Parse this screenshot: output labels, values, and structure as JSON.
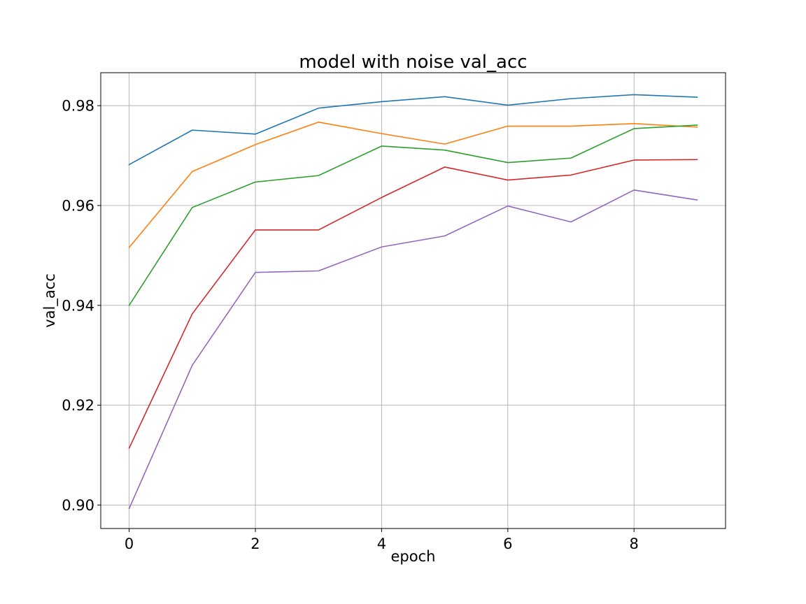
{
  "chart_data": {
    "type": "line",
    "title": "model with noise val_acc",
    "xlabel": "epoch",
    "ylabel": "val_acc",
    "x": [
      0,
      1,
      2,
      3,
      4,
      5,
      6,
      7,
      8,
      9
    ],
    "xlim": [
      -0.45,
      9.45
    ],
    "ylim": [
      0.8953,
      0.9866
    ],
    "xticks": [
      0,
      2,
      4,
      6,
      8
    ],
    "xtick_labels": [
      "0",
      "2",
      "4",
      "6",
      "8"
    ],
    "yticks": [
      0.9,
      0.92,
      0.94,
      0.96,
      0.98
    ],
    "ytick_labels": [
      "0.90",
      "0.92",
      "0.94",
      "0.96",
      "0.98"
    ],
    "grid": true,
    "legend": "none",
    "series": [
      {
        "color": "#1f77b4",
        "values": [
          0.9682,
          0.9751,
          0.9743,
          0.9795,
          0.9808,
          0.9818,
          0.9801,
          0.9814,
          0.9822,
          0.9817
        ]
      },
      {
        "color": "#ff7f0e",
        "values": [
          0.9516,
          0.9668,
          0.9722,
          0.9767,
          0.9744,
          0.9723,
          0.9759,
          0.9759,
          0.9764,
          0.9757
        ]
      },
      {
        "color": "#2ca02c",
        "values": [
          0.94,
          0.9596,
          0.9647,
          0.966,
          0.9719,
          0.9711,
          0.9686,
          0.9695,
          0.9754,
          0.9761
        ]
      },
      {
        "color": "#d62728",
        "values": [
          0.9114,
          0.9383,
          0.9551,
          0.9551,
          0.9616,
          0.9677,
          0.9651,
          0.9661,
          0.9691,
          0.9692
        ]
      },
      {
        "color": "#9467bd",
        "values": [
          0.8993,
          0.928,
          0.9466,
          0.9469,
          0.9517,
          0.9539,
          0.9599,
          0.9567,
          0.9631,
          0.9611
        ]
      }
    ]
  }
}
